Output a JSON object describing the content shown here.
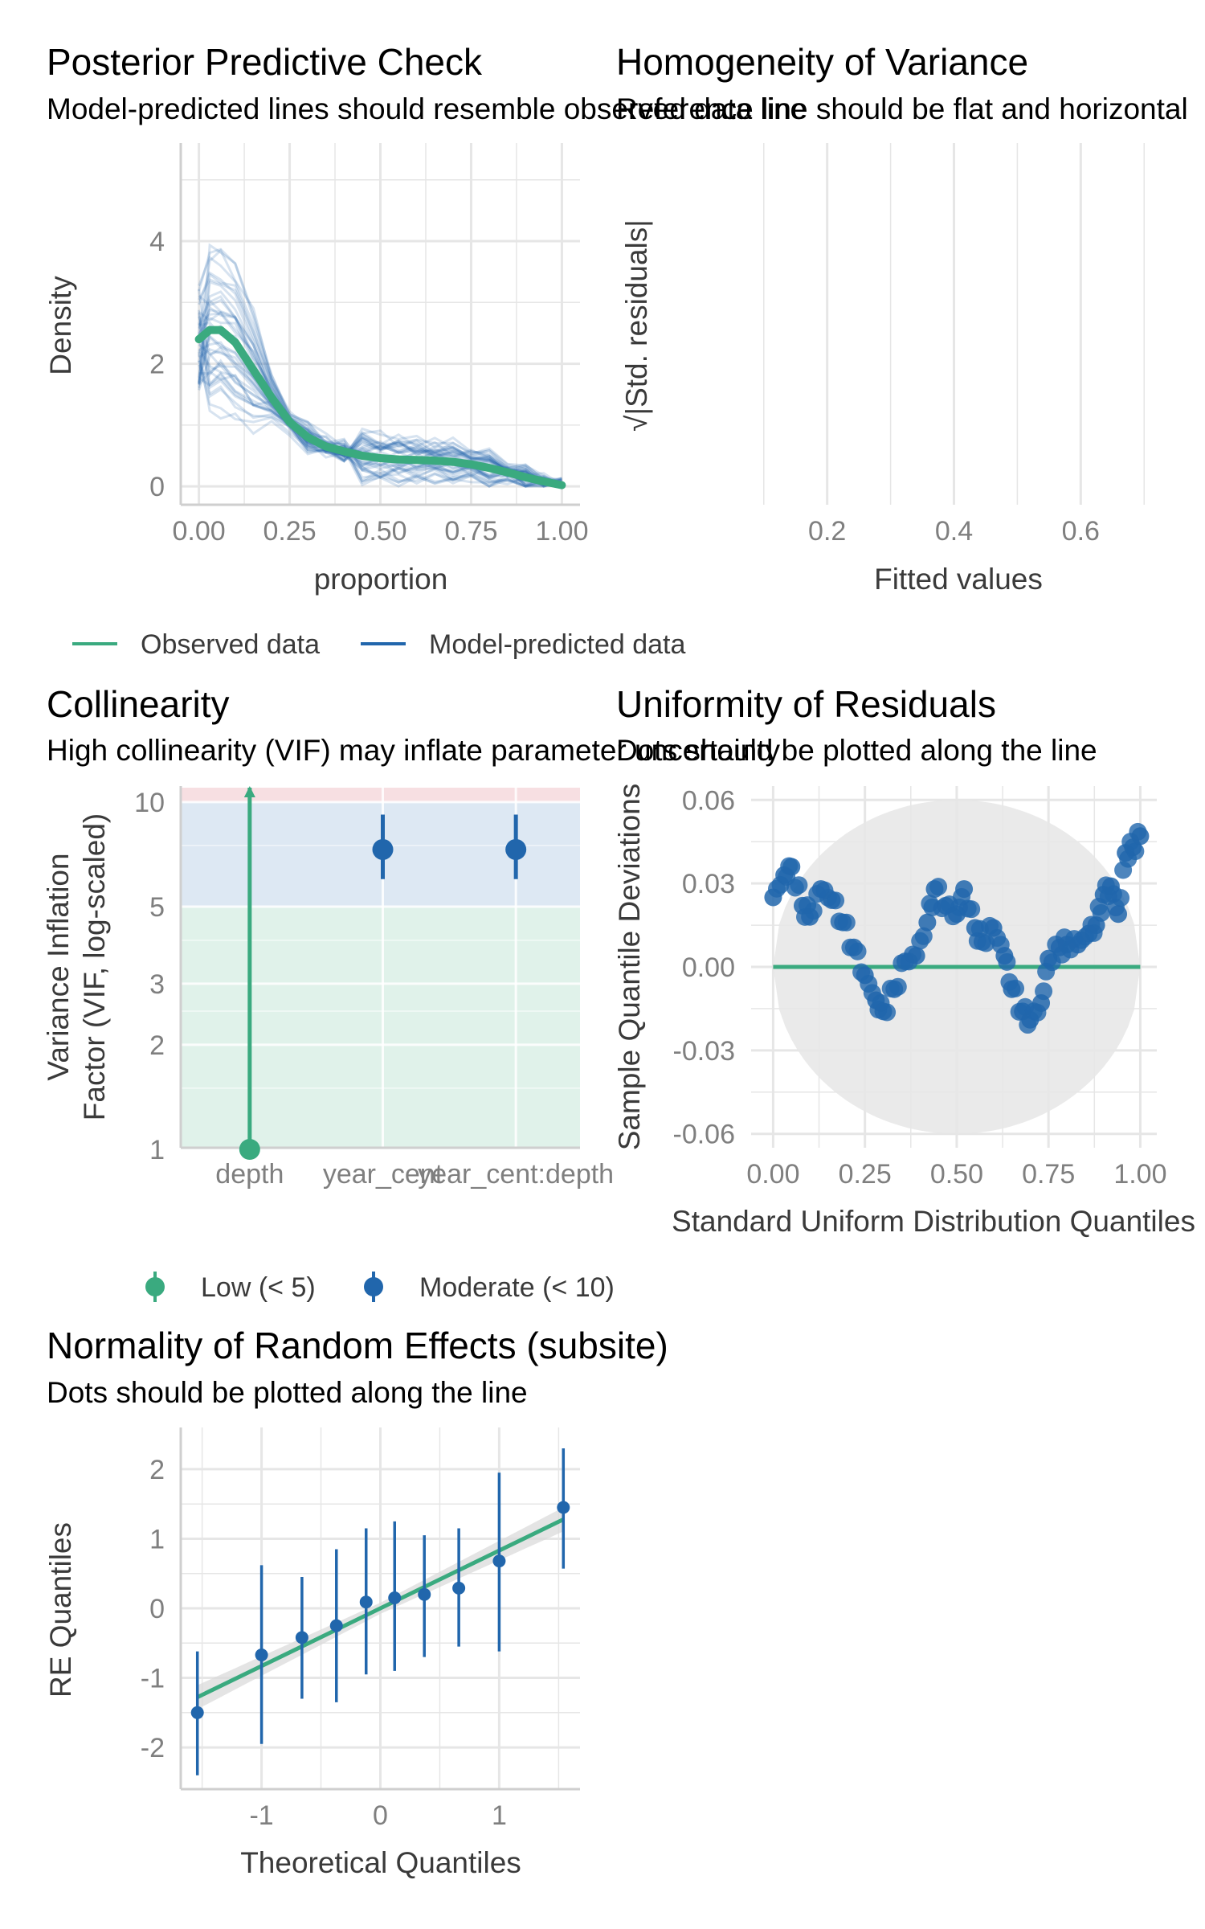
{
  "colors": {
    "green": "#3aaa7f",
    "blue": "#2166ac",
    "grid": "#e6e6e6",
    "band_red": "#f7dfe2",
    "band_blue": "#dde8f3",
    "band_green": "#e0f2ea",
    "envelope": "#e6e6e6"
  },
  "panels": {
    "ppc": {
      "title": "Posterior Predictive Check",
      "subtitle": "Model-predicted lines should resemble observed data line",
      "xlabel": "proportion",
      "ylabel": "Density",
      "xticks": [
        "0.00",
        "0.25",
        "0.50",
        "0.75",
        "1.00"
      ],
      "yticks": [
        "0",
        "2",
        "4"
      ],
      "legend": [
        "Observed data",
        "Model-predicted data"
      ]
    },
    "hov": {
      "title": "Homogeneity of Variance",
      "subtitle": "Reference line should be flat and horizontal",
      "xlabel": "Fitted values",
      "ylabel": "√|Std. residuals|",
      "xticks": [
        "0.2",
        "0.4",
        "0.6"
      ]
    },
    "coll": {
      "title": "Collinearity",
      "subtitle": "High collinearity (VIF) may inflate parameter uncertainty",
      "ylabel_line1": "Variance Inflation",
      "ylabel_line2": "Factor (VIF, log-scaled)",
      "xticks": [
        "depth",
        "year_cent",
        "year_cent:depth"
      ],
      "yticks": [
        "1",
        "2",
        "3",
        "5",
        "10"
      ],
      "legend": [
        "Low (< 5)",
        "Moderate (< 10)"
      ]
    },
    "unif": {
      "title": "Uniformity of Residuals",
      "subtitle": "Dots should be plotted along the line",
      "xlabel": "Standard Uniform Distribution Quantiles",
      "ylabel": "Sample Quantile Deviations",
      "xticks": [
        "0.00",
        "0.25",
        "0.50",
        "0.75",
        "1.00"
      ],
      "yticks": [
        "-0.06",
        "-0.03",
        "0.00",
        "0.03",
        "0.06"
      ]
    },
    "re": {
      "title": "Normality of Random Effects (subsite)",
      "subtitle": "Dots should be plotted along the line",
      "xlabel": "Theoretical Quantiles",
      "ylabel": "RE Quantiles",
      "xticks": [
        "-1",
        "0",
        "1"
      ],
      "yticks": [
        "-2",
        "-1",
        "0",
        "1",
        "2"
      ]
    }
  },
  "chart_data": [
    {
      "type": "line",
      "name": "Posterior Predictive Check",
      "xlim": [
        0,
        1
      ],
      "ylim": [
        0,
        5.6
      ],
      "observed": {
        "x": [
          0,
          0.03,
          0.06,
          0.1,
          0.15,
          0.2,
          0.25,
          0.3,
          0.35,
          0.4,
          0.45,
          0.5,
          0.55,
          0.6,
          0.65,
          0.7,
          0.75,
          0.8,
          0.85,
          0.9,
          0.95,
          1.0
        ],
        "y": [
          2.4,
          2.55,
          2.55,
          2.35,
          1.9,
          1.45,
          1.05,
          0.8,
          0.65,
          0.57,
          0.5,
          0.46,
          0.44,
          0.43,
          0.42,
          0.4,
          0.36,
          0.3,
          0.23,
          0.15,
          0.08,
          0.02
        ]
      },
      "predicted_draws": 40
    },
    {
      "type": "line",
      "name": "Homogeneity of Variance",
      "xlim": [
        0.08,
        0.72
      ],
      "series": []
    },
    {
      "type": "scatter",
      "name": "Collinearity",
      "y_scale": "log",
      "ylim": [
        1,
        11
      ],
      "bands": [
        {
          "from": 1,
          "to": 5
        },
        {
          "from": 5,
          "to": 10
        },
        {
          "from": 10,
          "to": 11
        }
      ],
      "points": [
        {
          "term": "depth",
          "vif": 1.0,
          "ci_low": 1.0,
          "ci_high": 11,
          "group": "Low (< 5)"
        },
        {
          "term": "year_cent",
          "vif": 7.3,
          "ci_low": 6.0,
          "ci_high": 9.2,
          "group": "Moderate (< 10)"
        },
        {
          "term": "year_cent:depth",
          "vif": 7.3,
          "ci_low": 6.0,
          "ci_high": 9.2,
          "group": "Moderate (< 10)"
        }
      ]
    },
    {
      "type": "scatter",
      "name": "Uniformity of Residuals",
      "xlim": [
        0,
        1
      ],
      "ylim": [
        -0.065,
        0.065
      ],
      "reference_y": 0,
      "x": [
        0.0,
        0.03,
        0.05,
        0.08,
        0.1,
        0.13,
        0.16,
        0.19,
        0.22,
        0.25,
        0.28,
        0.3,
        0.33,
        0.36,
        0.39,
        0.42,
        0.44,
        0.47,
        0.5,
        0.52,
        0.55,
        0.57,
        0.6,
        0.63,
        0.65,
        0.68,
        0.7,
        0.73,
        0.75,
        0.78,
        0.8,
        0.83,
        0.86,
        0.88,
        0.9,
        0.92,
        0.94,
        0.96,
        0.98,
        1.0
      ],
      "y": [
        0.025,
        0.033,
        0.036,
        0.022,
        0.018,
        0.028,
        0.024,
        0.016,
        0.007,
        -0.003,
        -0.012,
        -0.016,
        -0.008,
        0.002,
        0.004,
        0.016,
        0.028,
        0.022,
        0.019,
        0.028,
        0.014,
        0.009,
        0.014,
        0.004,
        -0.008,
        -0.016,
        -0.019,
        -0.013,
        0.003,
        0.007,
        0.008,
        0.008,
        0.012,
        0.015,
        0.026,
        0.029,
        0.019,
        0.041,
        0.043,
        0.047
      ]
    },
    {
      "type": "scatter",
      "name": "Normality of Random Effects (subsite)",
      "xlim": [
        -1.68,
        1.68
      ],
      "ylim": [
        -2.6,
        2.6
      ],
      "x": [
        -1.54,
        -1.0,
        -0.66,
        -0.37,
        -0.12,
        0.12,
        0.37,
        0.66,
        1.0,
        1.54
      ],
      "y": [
        -1.5,
        -0.67,
        -0.42,
        -0.25,
        0.09,
        0.15,
        0.2,
        0.29,
        0.68,
        1.45
      ],
      "ci_low": [
        -2.4,
        -1.95,
        -1.3,
        -1.35,
        -0.95,
        -0.9,
        -0.7,
        -0.55,
        -0.62,
        0.57
      ],
      "ci_high": [
        -0.62,
        0.62,
        0.45,
        0.85,
        1.15,
        1.25,
        1.05,
        1.15,
        1.95,
        2.3
      ],
      "line": {
        "intercept": 0.0,
        "slope": 0.83
      }
    }
  ]
}
